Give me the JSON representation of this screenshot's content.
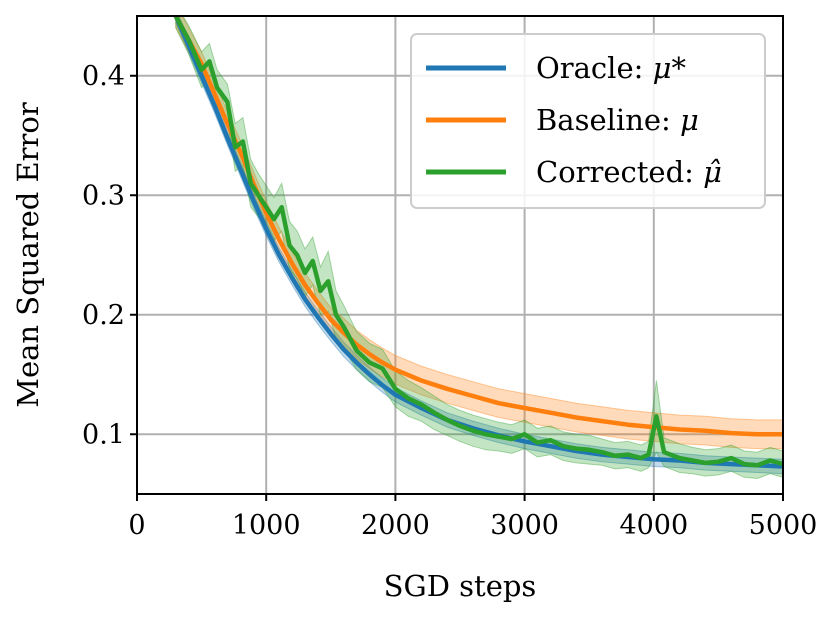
{
  "chart_data": {
    "type": "line",
    "title": "",
    "xlabel": "SGD steps",
    "ylabel": "Mean Squared Error",
    "xlim": [
      0,
      5000
    ],
    "ylim": [
      0.05,
      0.45
    ],
    "xticks": [
      0,
      1000,
      2000,
      3000,
      4000,
      5000
    ],
    "xtick_labels": [
      "0",
      "1000",
      "2000",
      "3000",
      "4000",
      "5000"
    ],
    "yticks": [
      0.1,
      0.2,
      0.3,
      0.4
    ],
    "ytick_labels": [
      "0.1",
      "0.2",
      "0.3",
      "0.4"
    ],
    "grid": true,
    "legend_position": "top-right",
    "series": [
      {
        "name": "Oracle: μ*",
        "legend_prefix": "Oracle: ",
        "legend_math": "μ*",
        "color": "#1f77b4",
        "x": [
          300,
          400,
          500,
          600,
          700,
          800,
          900,
          1000,
          1100,
          1200,
          1300,
          1400,
          1500,
          1600,
          1700,
          1800,
          1900,
          2000,
          2200,
          2400,
          2600,
          2800,
          3000,
          3200,
          3400,
          3600,
          3800,
          4000,
          4200,
          4400,
          4600,
          4800,
          5000
        ],
        "y": [
          0.45,
          0.425,
          0.4,
          0.375,
          0.348,
          0.322,
          0.296,
          0.272,
          0.25,
          0.231,
          0.213,
          0.198,
          0.184,
          0.171,
          0.16,
          0.15,
          0.141,
          0.133,
          0.122,
          0.112,
          0.105,
          0.099,
          0.094,
          0.09,
          0.086,
          0.083,
          0.081,
          0.079,
          0.078,
          0.076,
          0.075,
          0.074,
          0.073
        ],
        "band": [
          0.006,
          0.006,
          0.006,
          0.006,
          0.006,
          0.006,
          0.006,
          0.006,
          0.006,
          0.006,
          0.006,
          0.006,
          0.006,
          0.006,
          0.006,
          0.006,
          0.006,
          0.006,
          0.006,
          0.006,
          0.006,
          0.006,
          0.006,
          0.006,
          0.006,
          0.006,
          0.006,
          0.006,
          0.006,
          0.006,
          0.006,
          0.006,
          0.006
        ]
      },
      {
        "name": "Baseline: μ",
        "legend_prefix": "Baseline: ",
        "legend_math": "μ",
        "color": "#ff7f0e",
        "x": [
          300,
          400,
          500,
          600,
          700,
          800,
          900,
          1000,
          1100,
          1200,
          1300,
          1400,
          1500,
          1600,
          1700,
          1800,
          1900,
          2000,
          2200,
          2400,
          2600,
          2800,
          3000,
          3200,
          3400,
          3600,
          3800,
          4000,
          4200,
          4400,
          4600,
          4800,
          5000
        ],
        "y": [
          0.45,
          0.43,
          0.41,
          0.385,
          0.36,
          0.336,
          0.31,
          0.285,
          0.263,
          0.243,
          0.225,
          0.21,
          0.196,
          0.185,
          0.175,
          0.167,
          0.16,
          0.154,
          0.145,
          0.138,
          0.132,
          0.126,
          0.122,
          0.118,
          0.114,
          0.111,
          0.108,
          0.106,
          0.104,
          0.103,
          0.101,
          0.1,
          0.1
        ],
        "band": [
          0.01,
          0.01,
          0.01,
          0.01,
          0.01,
          0.01,
          0.01,
          0.01,
          0.01,
          0.01,
          0.01,
          0.01,
          0.01,
          0.012,
          0.012,
          0.012,
          0.012,
          0.012,
          0.012,
          0.012,
          0.012,
          0.012,
          0.012,
          0.012,
          0.012,
          0.012,
          0.012,
          0.012,
          0.012,
          0.012,
          0.012,
          0.012,
          0.012
        ]
      },
      {
        "name": "Corrected: μ̂",
        "legend_prefix": "Corrected: ",
        "legend_math": "μ̂",
        "color": "#2ca02c",
        "x": [
          300,
          400,
          500,
          560,
          620,
          700,
          760,
          820,
          880,
          940,
          1000,
          1060,
          1120,
          1180,
          1240,
          1300,
          1360,
          1420,
          1480,
          1540,
          1600,
          1700,
          1800,
          1900,
          2000,
          2100,
          2200,
          2300,
          2400,
          2500,
          2600,
          2700,
          2800,
          2900,
          3000,
          3100,
          3200,
          3300,
          3400,
          3500,
          3600,
          3700,
          3800,
          3900,
          3960,
          4020,
          4080,
          4200,
          4300,
          4400,
          4500,
          4600,
          4700,
          4800,
          4900,
          5000
        ],
        "y": [
          0.45,
          0.43,
          0.405,
          0.412,
          0.39,
          0.378,
          0.34,
          0.345,
          0.31,
          0.3,
          0.29,
          0.28,
          0.29,
          0.258,
          0.25,
          0.235,
          0.245,
          0.22,
          0.228,
          0.2,
          0.19,
          0.17,
          0.16,
          0.155,
          0.138,
          0.13,
          0.125,
          0.118,
          0.112,
          0.107,
          0.103,
          0.1,
          0.098,
          0.096,
          0.1,
          0.093,
          0.095,
          0.09,
          0.088,
          0.087,
          0.085,
          0.082,
          0.083,
          0.08,
          0.083,
          0.115,
          0.085,
          0.08,
          0.078,
          0.076,
          0.077,
          0.08,
          0.075,
          0.074,
          0.078,
          0.075
        ],
        "band": [
          0.01,
          0.012,
          0.015,
          0.015,
          0.015,
          0.015,
          0.02,
          0.02,
          0.02,
          0.018,
          0.018,
          0.018,
          0.02,
          0.02,
          0.02,
          0.02,
          0.02,
          0.02,
          0.025,
          0.02,
          0.018,
          0.016,
          0.016,
          0.016,
          0.015,
          0.015,
          0.014,
          0.014,
          0.013,
          0.013,
          0.013,
          0.013,
          0.012,
          0.012,
          0.012,
          0.012,
          0.012,
          0.012,
          0.012,
          0.012,
          0.011,
          0.011,
          0.011,
          0.011,
          0.011,
          0.03,
          0.012,
          0.012,
          0.011,
          0.011,
          0.011,
          0.011,
          0.011,
          0.011,
          0.011,
          0.011
        ]
      }
    ]
  }
}
